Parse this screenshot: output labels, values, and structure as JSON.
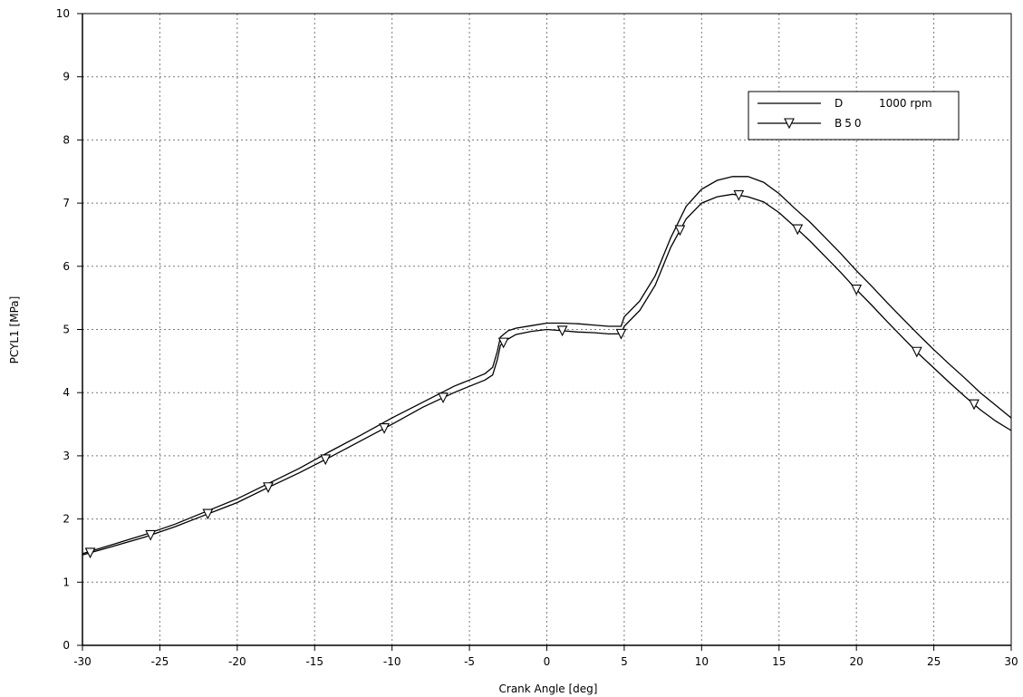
{
  "chart_data": {
    "type": "line",
    "xlabel": "Crank Angle [deg]",
    "ylabel": "PCYL1 [MPa]",
    "xlim": [
      -30,
      30
    ],
    "ylim": [
      0,
      10
    ],
    "xticks": [
      -30,
      -25,
      -20,
      -15,
      -10,
      -5,
      0,
      5,
      10,
      15,
      20,
      25,
      30
    ],
    "yticks": [
      0,
      1,
      2,
      3,
      4,
      5,
      6,
      7,
      8,
      9,
      10
    ],
    "grid": true,
    "legend_position": "top-right",
    "legend_note": "1000 rpm",
    "series": [
      {
        "name": "D",
        "marker": "none",
        "x": [
          -30,
          -28,
          -26,
          -24,
          -22,
          -20,
          -18,
          -16,
          -14,
          -12,
          -10,
          -8,
          -6,
          -5,
          -4,
          -3.5,
          -3.2,
          -3,
          -2.5,
          -2,
          -1,
          0,
          1,
          2,
          3,
          4,
          4.8,
          5,
          6,
          7,
          8,
          9,
          10,
          11,
          12,
          13,
          14,
          15,
          16,
          17,
          18,
          19,
          20,
          21,
          22,
          23,
          24,
          25,
          26,
          27,
          28,
          29,
          30
        ],
        "y": [
          1.45,
          1.6,
          1.75,
          1.92,
          2.12,
          2.32,
          2.56,
          2.8,
          3.07,
          3.33,
          3.6,
          3.85,
          4.1,
          4.2,
          4.3,
          4.4,
          4.65,
          4.88,
          4.98,
          5.02,
          5.06,
          5.1,
          5.1,
          5.09,
          5.07,
          5.05,
          5.05,
          5.2,
          5.45,
          5.85,
          6.45,
          6.95,
          7.22,
          7.36,
          7.42,
          7.42,
          7.33,
          7.15,
          6.92,
          6.7,
          6.45,
          6.2,
          5.93,
          5.68,
          5.42,
          5.17,
          4.92,
          4.68,
          4.45,
          4.23,
          4.0,
          3.8,
          3.6
        ]
      },
      {
        "name": "B50",
        "marker": "triangle-down",
        "x": [
          -30,
          -28,
          -26,
          -24,
          -22,
          -20,
          -18,
          -16,
          -14,
          -12,
          -10,
          -8,
          -6,
          -5,
          -4,
          -3.5,
          -3.2,
          -3,
          -2.5,
          -2,
          -1,
          0,
          1,
          2,
          3,
          4,
          4.8,
          5,
          6,
          7,
          8,
          9,
          10,
          11,
          12,
          13,
          14,
          15,
          16,
          17,
          18,
          19,
          20,
          21,
          22,
          23,
          24,
          25,
          26,
          27,
          28,
          29,
          30
        ],
        "y": [
          1.43,
          1.57,
          1.71,
          1.88,
          2.07,
          2.26,
          2.5,
          2.73,
          2.98,
          3.24,
          3.5,
          3.77,
          4.0,
          4.1,
          4.2,
          4.28,
          4.52,
          4.75,
          4.85,
          4.92,
          4.97,
          5.0,
          4.98,
          4.96,
          4.95,
          4.93,
          4.93,
          5.05,
          5.3,
          5.7,
          6.3,
          6.75,
          7.0,
          7.1,
          7.14,
          7.1,
          7.02,
          6.85,
          6.63,
          6.4,
          6.15,
          5.9,
          5.63,
          5.38,
          5.12,
          4.87,
          4.62,
          4.39,
          4.16,
          3.94,
          3.73,
          3.55,
          3.4
        ]
      }
    ],
    "marker_positions_B50": [
      -29.5,
      -25.6,
      -21.9,
      -18.0,
      -14.3,
      -10.5,
      -6.7,
      -2.8,
      1.0,
      4.8,
      8.6,
      12.4,
      16.2,
      20.0,
      23.9,
      27.6
    ]
  }
}
